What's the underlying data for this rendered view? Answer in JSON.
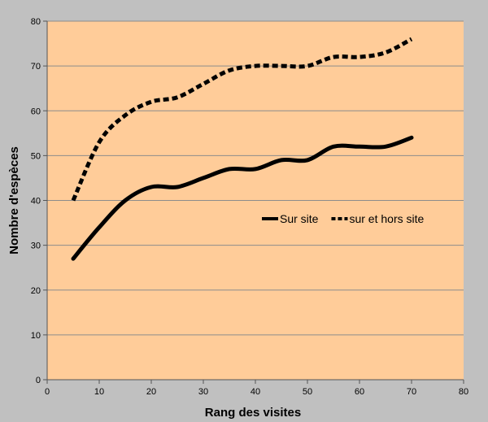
{
  "chart_data": {
    "type": "line",
    "title": "",
    "xlabel": "Rang des visites",
    "ylabel": "Nombre d'espèces",
    "xlim": [
      0,
      80
    ],
    "ylim": [
      0,
      80
    ],
    "xticks": [
      0,
      10,
      20,
      30,
      40,
      50,
      60,
      70,
      80
    ],
    "yticks": [
      0,
      10,
      20,
      30,
      40,
      50,
      60,
      70,
      80
    ],
    "grid": "horizontal",
    "legend_position": "right",
    "colors": {
      "background": "#c0c0c0",
      "plot_area": "#ffcc99",
      "gridline": "#8c8c8c",
      "series": "#000000"
    },
    "series": [
      {
        "name": "Sur site",
        "line_style": "solid",
        "x": [
          5,
          10,
          15,
          20,
          25,
          30,
          35,
          40,
          45,
          50,
          55,
          60,
          65,
          70
        ],
        "y": [
          27,
          34,
          40,
          43,
          43,
          45,
          47,
          47,
          49,
          49,
          52,
          52,
          52,
          54
        ]
      },
      {
        "name": "sur et hors site",
        "line_style": "dashed",
        "x": [
          5,
          10,
          15,
          20,
          25,
          30,
          35,
          40,
          45,
          50,
          55,
          60,
          65,
          70
        ],
        "y": [
          40,
          53,
          59,
          62,
          63,
          66,
          69,
          70,
          70,
          70,
          72,
          72,
          73,
          76
        ]
      }
    ]
  }
}
